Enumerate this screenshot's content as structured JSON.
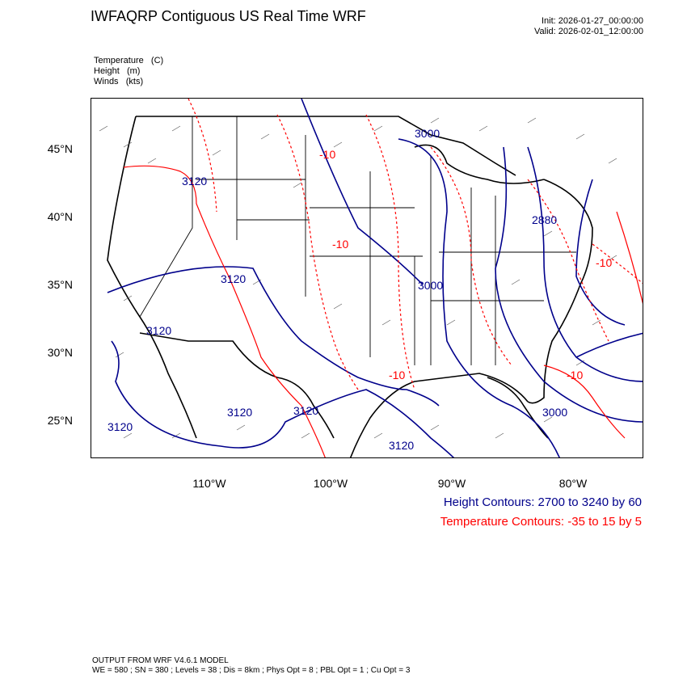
{
  "title": "IWFAQRP Contiguous US Real Time WRF",
  "init": "Init: 2026-01-27_00:00:00",
  "valid": "Valid: 2026-02-01_12:00:00",
  "fields": [
    "Temperature   (C)",
    "Height   (m)",
    "Winds   (kts)"
  ],
  "lat_labels": [
    "45°N",
    "40°N",
    "35°N",
    "30°N",
    "25°N"
  ],
  "lon_labels": [
    "110°W",
    "100°W",
    "90°W",
    "80°W"
  ],
  "height_legend": "Height Contours: 2700 to 3240 by 60",
  "temp_legend": "Temperature Contours: -35 to 15 by 5",
  "footer_line1": "OUTPUT FROM WRF V4.6.1 MODEL",
  "footer_line2": "WE = 580 ; SN = 380 ; Levels = 38 ; Dis = 8km ; Phys Opt = 8 ; PBL Opt = 1 ; Cu Opt = 3",
  "height_labels": [
    "3000",
    "3120",
    "2880",
    "3000",
    "3120",
    "3120",
    "3120",
    "3120",
    "3120",
    "3120",
    "3000"
  ],
  "temp_labels": [
    "-10",
    "-10",
    "-10",
    "-10",
    "-10"
  ],
  "colors": {
    "height": "#00008b",
    "temperature": "#ff0000"
  }
}
